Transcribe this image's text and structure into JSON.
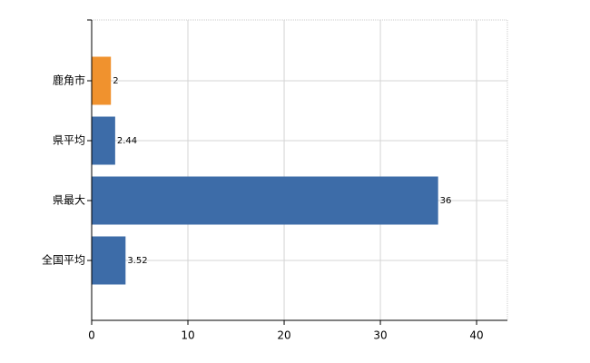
{
  "chart_data": {
    "type": "bar",
    "orientation": "horizontal",
    "categories": [
      "鹿角市",
      "県平均",
      "県最大",
      "全国平均"
    ],
    "values": [
      2,
      2.44,
      36,
      3.52
    ],
    "colors": [
      "#f0922e",
      "#3d6ca8",
      "#3d6ca8",
      "#3d6ca8"
    ],
    "xlim": [
      0,
      43.2
    ],
    "xticks": [
      0,
      10,
      20,
      30,
      40
    ],
    "grid": true
  }
}
